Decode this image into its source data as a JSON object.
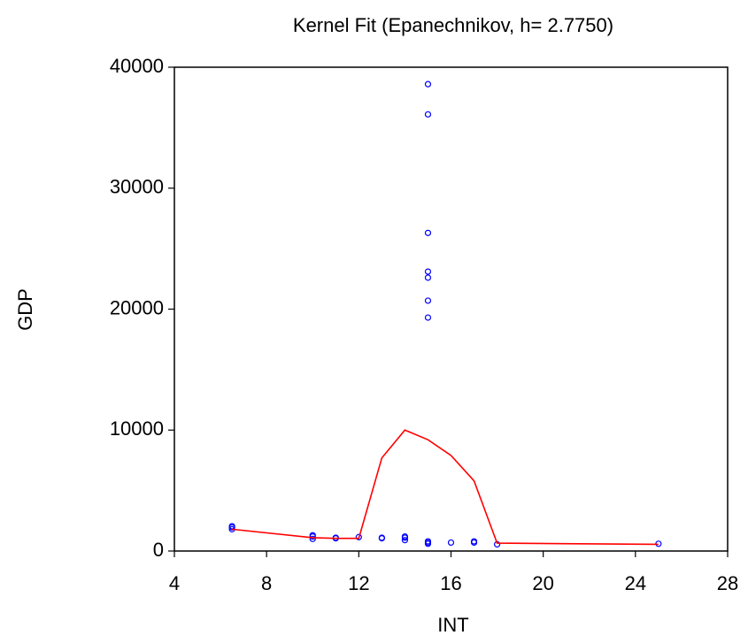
{
  "chart_data": {
    "type": "scatter",
    "title": "Kernel Fit (Epanechnikov, h= 2.7750)",
    "x_label": "INT",
    "y_label": "GDP",
    "xlim": [
      4,
      28
    ],
    "xticks": [
      4,
      8,
      12,
      16,
      20,
      24,
      28
    ],
    "ylim": [
      0,
      40000
    ],
    "yticks": [
      0,
      10000,
      20000,
      30000,
      40000
    ],
    "grid": false,
    "series": [
      {
        "type": "scatter",
        "color": "#0000ff",
        "x": [
          6.5,
          6.5,
          6.5,
          10,
          10,
          10,
          11,
          11,
          12,
          13,
          13,
          14,
          14,
          14,
          15,
          15,
          15,
          15,
          15,
          15,
          15,
          15,
          15,
          15,
          16,
          17,
          17,
          18,
          25
        ],
        "values": [
          1800,
          1950,
          2050,
          1000,
          1200,
          1300,
          1100,
          1050,
          1150,
          1100,
          1050,
          1100,
          900,
          1200,
          38600,
          36100,
          26300,
          23100,
          22600,
          20700,
          19300,
          800,
          600,
          700,
          700,
          800,
          700,
          550,
          600
        ]
      },
      {
        "type": "line",
        "color": "#ff0000",
        "x": [
          6.5,
          10,
          11,
          12,
          13,
          14,
          15,
          16,
          17,
          18,
          25
        ],
        "values": [
          1800,
          1100,
          1050,
          1050,
          7700,
          10000,
          9200,
          7900,
          5800,
          650,
          550
        ]
      }
    ]
  }
}
